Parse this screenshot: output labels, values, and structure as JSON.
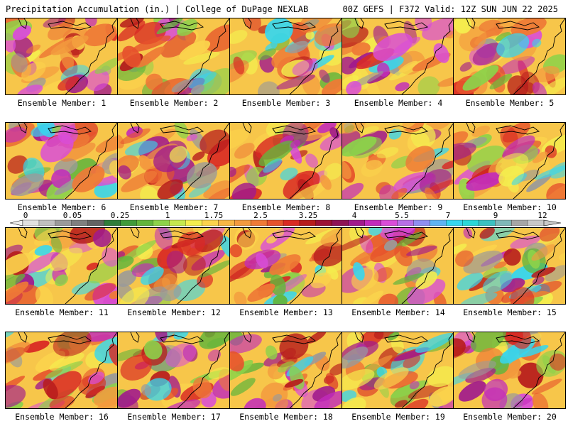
{
  "header": {
    "left": "Precipitation Accumulation (in.) | College of DuPage NEXLAB",
    "right": "00Z GEFS | F372 Valid: 12Z SUN JUN 22 2025"
  },
  "colorbar": {
    "labels": [
      "0",
      "0.05",
      "0.25",
      "1",
      "1.75",
      "2.5",
      "3.25",
      "4",
      "5.5",
      "7",
      "9",
      "12"
    ],
    "colors": [
      "#e0e0e0",
      "#c0c0c0",
      "#9a9a9a",
      "#7f7f7f",
      "#636363",
      "#2f7d3a",
      "#3f9a3a",
      "#63b53c",
      "#8cd24a",
      "#c6e84e",
      "#f4ee4e",
      "#fbd34c",
      "#f7b645",
      "#f39a3e",
      "#ee7a36",
      "#e6532c",
      "#d92a24",
      "#b71c1c",
      "#9b1035",
      "#8e1355",
      "#a11a8c",
      "#c22bbb",
      "#d94dd8",
      "#b76fe6",
      "#8f8ef0",
      "#5fb4f2",
      "#36d6ee",
      "#2ad8d8",
      "#3bc1c1",
      "#7fb8b8",
      "#a6a6a6",
      "#c8c8c8"
    ]
  },
  "members": [
    {
      "label": "Ensemble Member: 1"
    },
    {
      "label": "Ensemble Member: 2"
    },
    {
      "label": "Ensemble Member: 3"
    },
    {
      "label": "Ensemble Member: 4"
    },
    {
      "label": "Ensemble Member: 5"
    },
    {
      "label": "Ensemble Member: 6"
    },
    {
      "label": "Ensemble Member: 7"
    },
    {
      "label": "Ensemble Member: 8"
    },
    {
      "label": "Ensemble Member: 9"
    },
    {
      "label": "Ensemble Member: 10"
    },
    {
      "label": "Ensemble Member: 11"
    },
    {
      "label": "Ensemble Member: 12"
    },
    {
      "label": "Ensemble Member: 13"
    },
    {
      "label": "Ensemble Member: 14"
    },
    {
      "label": "Ensemble Member: 15"
    },
    {
      "label": "Ensemble Member: 16"
    },
    {
      "label": "Ensemble Member: 17"
    },
    {
      "label": "Ensemble Member: 18"
    },
    {
      "label": "Ensemble Member: 19"
    },
    {
      "label": "Ensemble Member: 20"
    }
  ]
}
